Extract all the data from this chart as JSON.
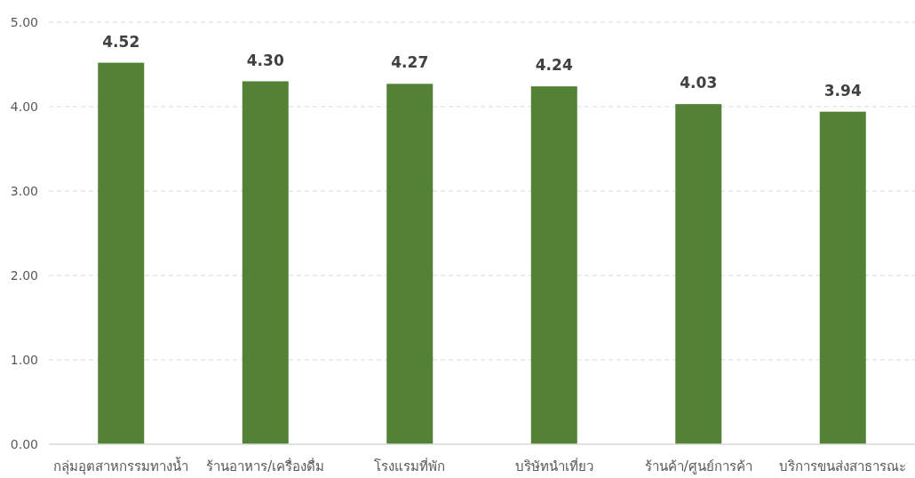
{
  "chart_data": {
    "type": "bar",
    "categories": [
      "กลุ่มอุตสาหกรรมทางน้ำ",
      "ร้านอาหาร/เครื่องดื่ม",
      "โรงแรมที่พัก",
      "บริษัทนำเที่ยว",
      "ร้านค้า/ศูนย์การค้า",
      "บริการขนส่งสาธารณะ"
    ],
    "values": [
      4.52,
      4.3,
      4.27,
      4.24,
      4.03,
      3.94
    ],
    "value_labels": [
      "4.52",
      "4.30",
      "4.27",
      "4.24",
      "4.03",
      "3.94"
    ],
    "color": "#538135",
    "ylim": [
      0,
      5
    ],
    "yticks": [
      {
        "value": 0,
        "label": "0.00"
      },
      {
        "value": 1,
        "label": "1.00"
      },
      {
        "value": 2,
        "label": "2.00"
      },
      {
        "value": 3,
        "label": "3.00"
      },
      {
        "value": 4,
        "label": "4.00"
      },
      {
        "value": 5,
        "label": "5.00"
      }
    ],
    "grid": "y"
  }
}
